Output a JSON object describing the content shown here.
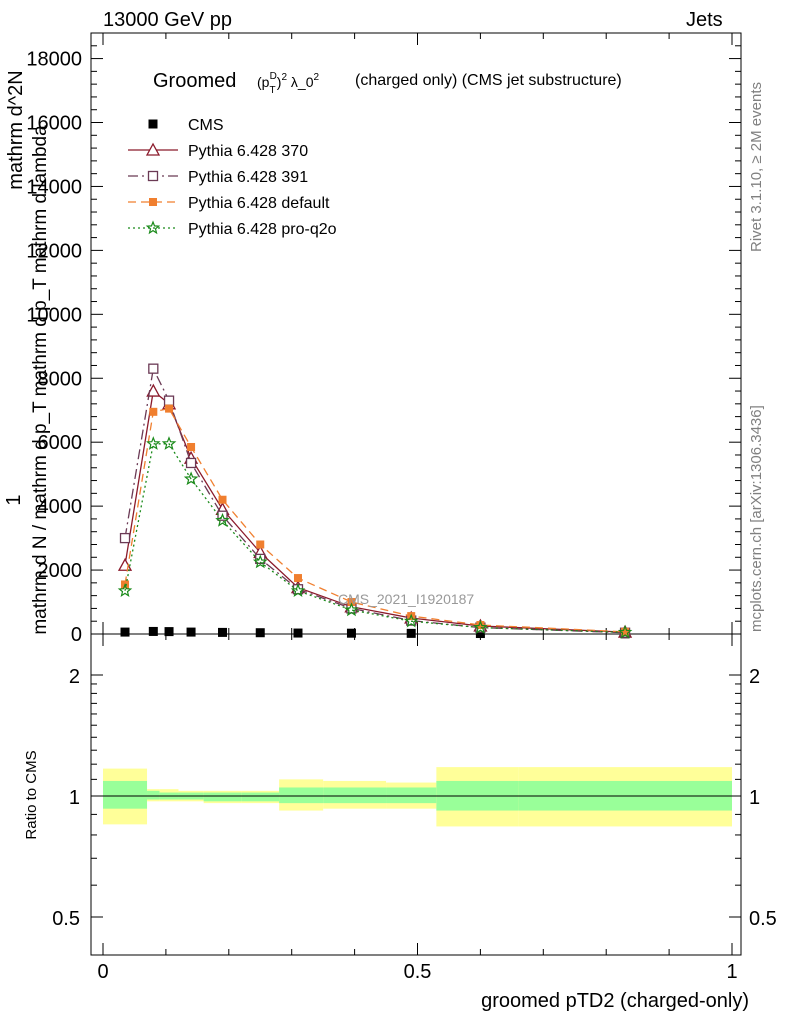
{
  "header": {
    "left": "13000 GeV pp",
    "right": "Jets"
  },
  "side_notes": {
    "rivet": "Rivet 3.1.10, ≥ 2M events",
    "mcplots": "mcplots.cern.ch [arXiv:1306.3436]"
  },
  "chart_data": {
    "type": "line",
    "title_parts": {
      "main": "Groomed",
      "math": "(p_T^D)^2 λ_0^2",
      "suffix": "(charged only) (CMS jet substructure)"
    },
    "watermark": "CMS_2021_I1920187",
    "xlabel": "groomed pTD2 (charged-only)",
    "ylabel_lines": [
      "1",
      "mathrm d N / mathrm d p_T mathrm d p_T mathrm d lambda",
      "mathrm d^2N"
    ],
    "ratio_ylabel": "Ratio to CMS",
    "xlim": [
      0,
      1
    ],
    "ylim": [
      0,
      18800
    ],
    "ratio_ylim": [
      0.4,
      2.3
    ],
    "x_ticks": [
      0,
      0.5,
      1
    ],
    "x_tick_labels": [
      "0",
      "0.5",
      "1"
    ],
    "y_ticks": [
      0,
      2000,
      4000,
      6000,
      8000,
      10000,
      12000,
      14000,
      16000,
      18000
    ],
    "y_tick_labels": [
      "0",
      "2000",
      "4000",
      "6000",
      "8000",
      "10000",
      "12000",
      "14000",
      "16000",
      "18000"
    ],
    "ratio_ticks": [
      0.5,
      1,
      2
    ],
    "ratio_tick_labels": [
      "0.5",
      "1",
      "2"
    ],
    "bin_edges": [
      0,
      0.07,
      0.09,
      0.12,
      0.16,
      0.22,
      0.28,
      0.35,
      0.45,
      0.53,
      0.66,
      1.0
    ],
    "x": [
      0.035,
      0.08,
      0.105,
      0.14,
      0.19,
      0.25,
      0.31,
      0.395,
      0.49,
      0.6,
      0.83
    ],
    "legend_position": "top-left",
    "series": [
      {
        "name": "CMS",
        "color": "#000000",
        "marker": "square-filled",
        "values": [
          60,
          80,
          75,
          60,
          50,
          40,
          30,
          25,
          20,
          15,
          5
        ]
      },
      {
        "name": "Pythia 6.428 370",
        "color": "#8b1a2b",
        "marker": "triangle-open",
        "dash": "",
        "values": [
          2150,
          7600,
          7200,
          5500,
          3900,
          2550,
          1450,
          850,
          500,
          250,
          60
        ]
      },
      {
        "name": "Pythia 6.428 391",
        "color": "#6b3a55",
        "marker": "square-open",
        "dash": "10,4,2,4",
        "values": [
          3000,
          8300,
          7300,
          5350,
          3700,
          2350,
          1400,
          800,
          420,
          200,
          40
        ]
      },
      {
        "name": "Pythia 6.428 default",
        "color": "#f07f2f",
        "marker": "square-filled-small",
        "dash": "8,5",
        "values": [
          1550,
          6950,
          7050,
          5850,
          4200,
          2800,
          1750,
          1000,
          560,
          280,
          70
        ]
      },
      {
        "name": "Pythia 6.428 pro-q2o",
        "color": "#1a8a1a",
        "marker": "star",
        "dash": "2,3",
        "values": [
          1350,
          5950,
          5950,
          4850,
          3550,
          2250,
          1350,
          750,
          400,
          200,
          50
        ]
      }
    ],
    "ratio_bands": {
      "inner_color": "#99ff99",
      "outer_color": "#ffff99",
      "inner": [
        [
          0.93,
          1.09
        ],
        [
          0.98,
          1.03
        ],
        [
          0.98,
          1.02
        ],
        [
          0.98,
          1.02
        ],
        [
          0.97,
          1.02
        ],
        [
          0.97,
          1.02
        ],
        [
          0.96,
          1.05
        ],
        [
          0.96,
          1.05
        ],
        [
          0.96,
          1.05
        ],
        [
          0.92,
          1.09
        ],
        [
          0.92,
          1.09
        ]
      ],
      "outer": [
        [
          0.85,
          1.17
        ],
        [
          0.97,
          1.04
        ],
        [
          0.97,
          1.04
        ],
        [
          0.97,
          1.03
        ],
        [
          0.96,
          1.03
        ],
        [
          0.96,
          1.03
        ],
        [
          0.92,
          1.1
        ],
        [
          0.93,
          1.09
        ],
        [
          0.93,
          1.08
        ],
        [
          0.84,
          1.18
        ],
        [
          0.84,
          1.18
        ]
      ]
    }
  }
}
